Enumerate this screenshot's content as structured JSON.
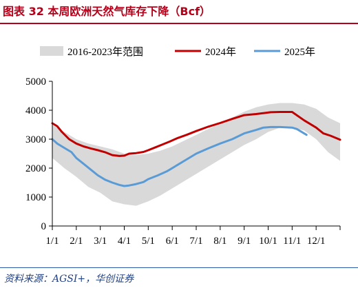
{
  "header": {
    "title": "图表 32 本周欧洲天然气库存下降（Bcf）"
  },
  "footer": {
    "source": "资料来源：AGSI+，华创证券"
  },
  "chart_data": {
    "type": "area",
    "ylim": [
      0,
      5000
    ],
    "yticks": [
      0,
      1000,
      2000,
      3000,
      4000,
      5000
    ],
    "x_tick_labels": [
      "1/1",
      "2/1",
      "3/1",
      "4/1",
      "5/1",
      "6/1",
      "7/1",
      "8/1",
      "9/1",
      "10/1",
      "11/1",
      "12/1"
    ],
    "x_range": [
      0,
      12
    ],
    "legend_position": "top",
    "grid": false,
    "colors": {
      "band": "#d9d9d9",
      "series_2024": "#c00000",
      "series_2025": "#5b9bd5"
    },
    "band": {
      "name": "2016-2023年范围",
      "x": [
        0,
        0.5,
        1,
        1.5,
        2,
        2.5,
        3,
        3.5,
        4,
        4.5,
        5,
        5.5,
        6,
        6.5,
        7,
        7.5,
        8,
        8.5,
        9,
        9.5,
        10,
        10.5,
        11,
        11.5,
        12
      ],
      "upper": [
        3500,
        3250,
        3000,
        2850,
        2750,
        2650,
        2500,
        2450,
        2500,
        2600,
        2750,
        2950,
        3150,
        3350,
        3550,
        3750,
        3950,
        4100,
        4200,
        4250,
        4250,
        4200,
        4050,
        3750,
        3550
      ],
      "lower": [
        2350,
        2000,
        1700,
        1350,
        1150,
        850,
        750,
        700,
        850,
        1050,
        1300,
        1550,
        1800,
        2050,
        2300,
        2550,
        2800,
        3000,
        3250,
        3400,
        3400,
        3300,
        3000,
        2550,
        2250
      ]
    },
    "series": [
      {
        "name": "2024年",
        "x": [
          0,
          0.2,
          0.4,
          0.7,
          1,
          1.3,
          1.6,
          1.9,
          2.2,
          2.5,
          2.8,
          3.0,
          3.2,
          3.5,
          3.8,
          4.0,
          4.3,
          4.6,
          4.9,
          5.2,
          5.6,
          6.0,
          6.5,
          7.0,
          7.5,
          8.0,
          8.5,
          8.8,
          9.1,
          9.5,
          10.0,
          10.5,
          11.0,
          11.3,
          11.6,
          12.0
        ],
        "values": [
          3550,
          3450,
          3250,
          3000,
          2850,
          2750,
          2680,
          2620,
          2550,
          2450,
          2420,
          2430,
          2500,
          2520,
          2560,
          2620,
          2720,
          2820,
          2920,
          3030,
          3150,
          3280,
          3430,
          3560,
          3700,
          3830,
          3870,
          3900,
          3930,
          3940,
          3940,
          3650,
          3400,
          3200,
          3120,
          2980
        ]
      },
      {
        "name": "2025年",
        "x": [
          0,
          0.2,
          0.5,
          0.8,
          1.0,
          1.3,
          1.6,
          1.9,
          2.2,
          2.5,
          2.8,
          3.0,
          3.2,
          3.5,
          3.8,
          4.0,
          4.4,
          4.8,
          5.2,
          5.6,
          6.0,
          6.5,
          7.0,
          7.5,
          8.0,
          8.5,
          8.8,
          9.1,
          9.5,
          10.0,
          10.2,
          10.6
        ],
        "values": [
          3000,
          2850,
          2700,
          2550,
          2350,
          2150,
          1950,
          1750,
          1600,
          1500,
          1420,
          1380,
          1400,
          1450,
          1520,
          1620,
          1750,
          1900,
          2100,
          2300,
          2500,
          2680,
          2850,
          3000,
          3200,
          3320,
          3400,
          3420,
          3420,
          3400,
          3350,
          3150
        ]
      }
    ]
  }
}
